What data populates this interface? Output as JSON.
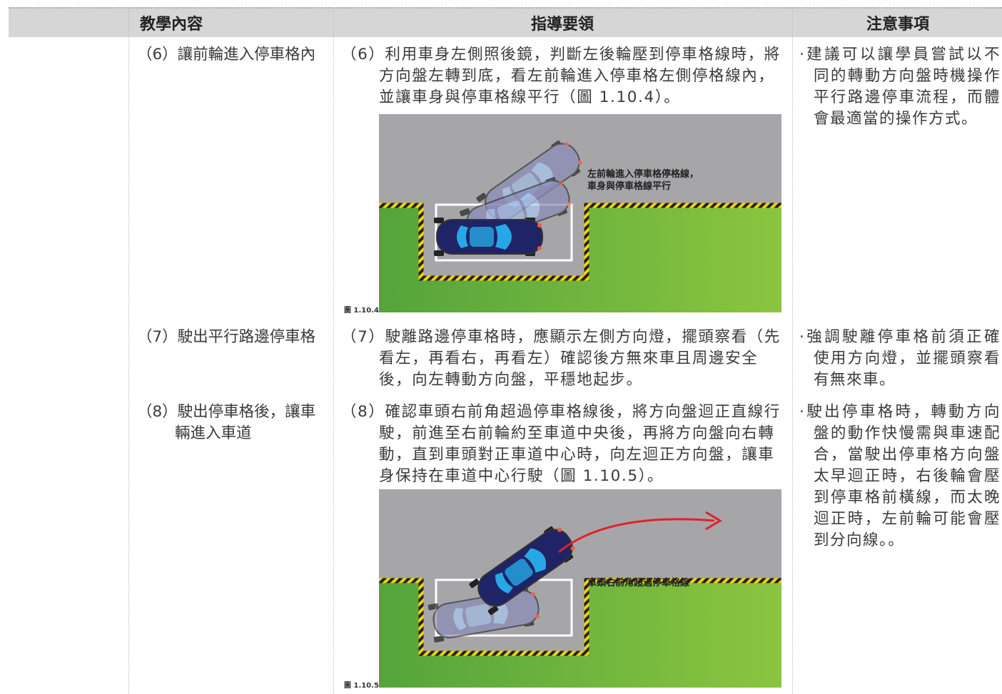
{
  "header": {
    "columns": [
      "教學內容",
      "指導要領",
      "注意事項"
    ]
  },
  "table": {
    "rows": [
      {
        "item": "（6）讓前輪進入停車格內",
        "guidance": "（6）利用車身左側照後鏡，判斷左後輪壓到停車格線時，將方向盤左轉到底，看左前輪進入停車格左側停格線內，並讓車身與停車格線平行（圖 1.10.4）。",
        "figure": {
          "caption": "圖 1.10.4",
          "labels": [
            "左前輪進入停車格停格線，",
            "車身與停車格線平行"
          ]
        },
        "notes": "·建議可以讓學員嘗試以不同的轉動方向盤時機操作平行路邊停車流程，而體會最適當的操作方式。"
      },
      {
        "item": "（7）駛出平行路邊停車格",
        "guidance": "（7）駛離路邊停車格時，應顯示左側方向燈，擺頭察看（先看左，再看右，再看左）確認後方無來車且周邊安全後，向左轉動方向盤，平穩地起步。",
        "notes": "·強調駛離停車格前須正確使用方向燈，並擺頭察看有無來車。"
      },
      {
        "item": "（8）駛出停車格後，讓車輛進入車道",
        "guidance": "（8）確認車頭右前角超過停車格線後，將方向盤迴正直線行駛，前進至右前輪約至車道中央後，再將方向盤向右轉動，直到車頭對正車道中心時，向左迴正方向盤，讓車身保持在車道中心行駛（圖 1.10.5）。",
        "figure": {
          "caption": "圖 1.10.5",
          "labels": [
            "車頭右前角超過停車格線"
          ]
        },
        "notes": "·駛出停車格時，轉動方向盤的動作快慢需與車速配合，當駛出停車格方向盤太早迴正時，右後輪會壓到停車格前橫線，而太晚迴正時，左前輪可能會壓到分向線。。"
      }
    ]
  }
}
